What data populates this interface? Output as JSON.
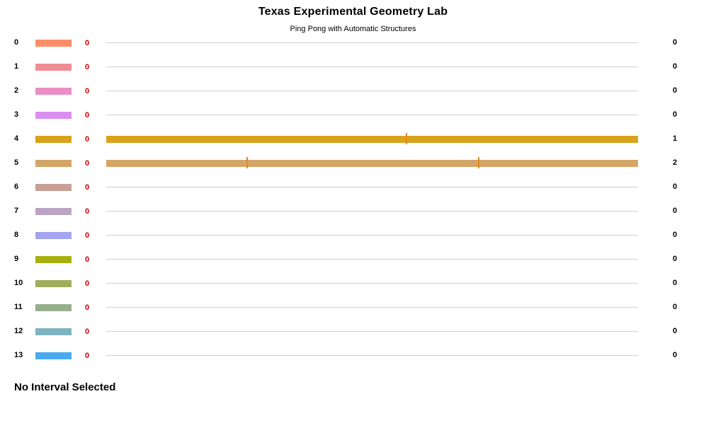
{
  "header": {
    "title": "Texas Experimental Geometry Lab",
    "subtitle": "Ping Pong with Automatic Structures"
  },
  "rows": [
    {
      "index": "0",
      "color": "#ff8c69",
      "count": "0",
      "total": "0",
      "active": false,
      "ticks": []
    },
    {
      "index": "1",
      "color": "#f08c94",
      "count": "0",
      "total": "0",
      "active": false,
      "ticks": []
    },
    {
      "index": "2",
      "color": "#ec8ec6",
      "count": "0",
      "total": "0",
      "active": false,
      "ticks": []
    },
    {
      "index": "3",
      "color": "#da8ef0",
      "count": "0",
      "total": "0",
      "active": false,
      "ticks": []
    },
    {
      "index": "4",
      "color": "#d9a21c",
      "count": "0",
      "total": "1",
      "active": true,
      "ticks": [
        0.5645
      ],
      "tick_color": "#e08a1e"
    },
    {
      "index": "5",
      "color": "#d4a566",
      "count": "0",
      "total": "2",
      "active": true,
      "ticks": [
        0.265,
        0.7
      ],
      "tick_color": "#e08a1e"
    },
    {
      "index": "6",
      "color": "#c8a095",
      "count": "0",
      "total": "0",
      "active": false,
      "ticks": []
    },
    {
      "index": "7",
      "color": "#bca3c4",
      "count": "0",
      "total": "0",
      "active": false,
      "ticks": []
    },
    {
      "index": "8",
      "color": "#a4a4f0",
      "count": "0",
      "total": "0",
      "active": false,
      "ticks": []
    },
    {
      "index": "9",
      "color": "#a8b010",
      "count": "0",
      "total": "0",
      "active": false,
      "ticks": []
    },
    {
      "index": "10",
      "color": "#a0ae5c",
      "count": "0",
      "total": "0",
      "active": false,
      "ticks": []
    },
    {
      "index": "11",
      "color": "#97af8c",
      "count": "0",
      "total": "0",
      "active": false,
      "ticks": []
    },
    {
      "index": "12",
      "color": "#7eb3c0",
      "count": "0",
      "total": "0",
      "active": false,
      "ticks": []
    },
    {
      "index": "13",
      "color": "#4aaaf0",
      "count": "0",
      "total": "0",
      "active": false,
      "ticks": []
    }
  ],
  "status": {
    "text": "No Interval Selected"
  }
}
